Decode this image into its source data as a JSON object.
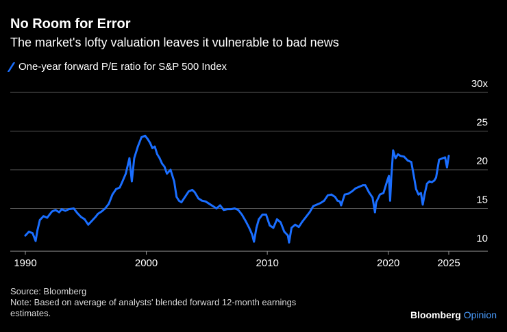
{
  "header": {
    "title": "No Room for Error",
    "subtitle": "The market's lofty valuation leaves it vulnerable to bad news"
  },
  "legend": {
    "label": "One-year forward P/E ratio for S&P 500 Index"
  },
  "footer": {
    "source": "Source: Bloomberg",
    "note": "Note: Based on average of analysts' blended forward 12-month earnings estimates."
  },
  "brand": {
    "name": "Bloomberg",
    "accent": "Opinion"
  },
  "colors": {
    "background": "#000000",
    "series": "#1a6eff",
    "grid": "#5a5a5a",
    "text": "#ffffff",
    "muted": "#d9d9d9",
    "brand_accent": "#4a9dff"
  },
  "chart_data": {
    "type": "line",
    "title": "No Room for Error",
    "subtitle": "The market's lofty valuation leaves it vulnerable to bad news",
    "xlabel": "",
    "ylabel": "",
    "xlim": [
      1990,
      2028
    ],
    "ylim": [
      10,
      30
    ],
    "x_ticks": [
      1990,
      2000,
      2010,
      2020,
      2025
    ],
    "x_tick_labels": [
      "1990",
      "2000",
      "2010",
      "2020",
      "2025"
    ],
    "y_ticks": [
      10,
      15,
      20,
      25,
      30
    ],
    "y_tick_labels": [
      "10",
      "15",
      "20",
      "25",
      "30x"
    ],
    "grid": true,
    "legend_position": "top-left",
    "series": [
      {
        "name": "One-year forward P/E ratio for S&P 500 Index",
        "x": [
          1990.0,
          1990.3,
          1990.6,
          1990.85,
          1991.0,
          1991.2,
          1991.5,
          1991.8,
          1992.0,
          1992.2,
          1992.5,
          1992.8,
          1993.0,
          1993.3,
          1993.6,
          1994.0,
          1994.3,
          1994.6,
          1994.9,
          1995.2,
          1995.5,
          1995.8,
          1996.0,
          1996.3,
          1996.6,
          1996.9,
          1997.2,
          1997.5,
          1997.8,
          1998.0,
          1998.3,
          1998.6,
          1998.8,
          1999.0,
          1999.3,
          1999.6,
          1999.9,
          2000.1,
          2000.3,
          2000.5,
          2000.7,
          2000.9,
          2001.1,
          2001.3,
          2001.5,
          2001.7,
          2002.0,
          2002.3,
          2002.5,
          2002.7,
          2002.9,
          2003.2,
          2003.5,
          2003.8,
          2004.0,
          2004.3,
          2004.6,
          2004.9,
          2005.2,
          2005.5,
          2005.8,
          2006.1,
          2006.4,
          2006.7,
          2007.0,
          2007.3,
          2007.6,
          2007.9,
          2008.2,
          2008.5,
          2008.75,
          2008.9,
          2009.1,
          2009.3,
          2009.6,
          2009.9,
          2010.2,
          2010.5,
          2010.8,
          2011.1,
          2011.4,
          2011.7,
          2011.8,
          2012.0,
          2012.3,
          2012.6,
          2012.9,
          2013.2,
          2013.5,
          2013.8,
          2014.1,
          2014.4,
          2014.7,
          2015.0,
          2015.3,
          2015.6,
          2015.8,
          2016.0,
          2016.1,
          2016.4,
          2016.7,
          2017.0,
          2017.3,
          2017.6,
          2017.9,
          2018.1,
          2018.4,
          2018.7,
          2018.9,
          2019.0,
          2019.3,
          2019.6,
          2019.9,
          2020.05,
          2020.15,
          2020.25,
          2020.4,
          2020.6,
          2020.8,
          2021.0,
          2021.3,
          2021.6,
          2021.9,
          2022.1,
          2022.3,
          2022.5,
          2022.7,
          2022.85,
          2023.0,
          2023.2,
          2023.4,
          2023.6,
          2023.8,
          2023.95,
          2024.2,
          2024.5,
          2024.7,
          2024.85,
          2025.0
        ],
        "values": [
          11.5,
          12.0,
          11.8,
          10.8,
          12.2,
          13.5,
          14.0,
          13.8,
          14.2,
          14.6,
          14.8,
          14.5,
          14.9,
          14.7,
          14.9,
          15.0,
          14.4,
          13.9,
          13.6,
          12.9,
          13.4,
          13.9,
          14.3,
          14.6,
          15.0,
          15.6,
          16.8,
          17.5,
          17.7,
          18.4,
          19.5,
          21.5,
          18.5,
          21.5,
          23.0,
          24.2,
          24.4,
          24.0,
          23.5,
          22.8,
          23.0,
          22.0,
          21.5,
          20.8,
          20.4,
          19.5,
          20.0,
          18.5,
          16.5,
          16.0,
          15.8,
          16.5,
          17.2,
          17.4,
          17.1,
          16.3,
          16.0,
          15.9,
          15.6,
          15.3,
          15.0,
          15.4,
          14.8,
          14.9,
          14.9,
          15.0,
          14.8,
          14.2,
          13.4,
          12.5,
          11.6,
          10.7,
          12.5,
          13.6,
          14.2,
          14.2,
          12.8,
          12.5,
          13.6,
          13.2,
          12.0,
          11.5,
          10.6,
          12.5,
          12.9,
          12.6,
          13.3,
          13.9,
          14.5,
          15.3,
          15.5,
          15.7,
          16.0,
          16.7,
          16.8,
          16.5,
          16.0,
          15.9,
          15.4,
          16.8,
          16.9,
          17.2,
          17.6,
          17.8,
          18.0,
          18.0,
          17.1,
          16.4,
          14.5,
          15.8,
          16.8,
          17.0,
          18.5,
          19.2,
          16.0,
          19.0,
          22.5,
          21.5,
          22.0,
          21.8,
          21.7,
          21.2,
          21.0,
          19.3,
          17.5,
          16.8,
          17.0,
          15.5,
          16.8,
          18.2,
          18.5,
          18.4,
          18.6,
          19.0,
          21.3,
          21.5,
          21.6,
          20.3,
          21.8
        ]
      }
    ]
  }
}
